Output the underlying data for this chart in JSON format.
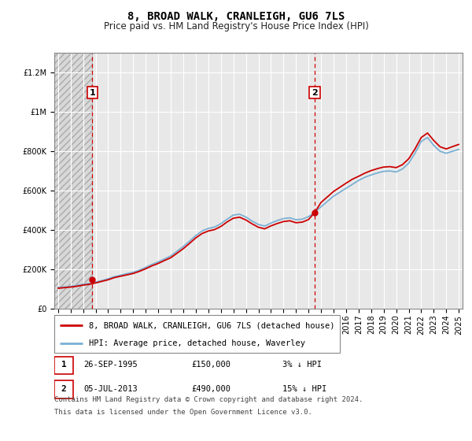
{
  "title": "8, BROAD WALK, CRANLEIGH, GU6 7LS",
  "subtitle": "Price paid vs. HM Land Registry's House Price Index (HPI)",
  "background_color": "#ffffff",
  "plot_bg_color": "#e8e8e8",
  "grid_color": "#ffffff",
  "red_line_color": "#cc0000",
  "blue_line_color": "#7ab0d4",
  "annotation_box_color": "#cc0000",
  "sale1_year": 1995.73,
  "sale1_price": 150000,
  "sale1_label": "1",
  "sale1_date": "26-SEP-1995",
  "sale1_price_str": "£150,000",
  "sale1_pct": "3% ↓ HPI",
  "sale2_year": 2013.5,
  "sale2_price": 490000,
  "sale2_label": "2",
  "sale2_date": "05-JUL-2013",
  "sale2_price_str": "£490,000",
  "sale2_pct": "15% ↓ HPI",
  "legend_line1": "8, BROAD WALK, CRANLEIGH, GU6 7LS (detached house)",
  "legend_line2": "HPI: Average price, detached house, Waverley",
  "footnote_line1": "Contains HM Land Registry data © Crown copyright and database right 2024.",
  "footnote_line2": "This data is licensed under the Open Government Licence v3.0.",
  "ylim": [
    0,
    1300000
  ],
  "yticks": [
    0,
    200000,
    400000,
    600000,
    800000,
    1000000,
    1200000
  ],
  "hpi_years": [
    1993.0,
    1993.5,
    1994.0,
    1994.5,
    1995.0,
    1995.5,
    1996.0,
    1996.5,
    1997.0,
    1997.5,
    1998.0,
    1998.5,
    1999.0,
    1999.5,
    2000.0,
    2000.5,
    2001.0,
    2001.5,
    2002.0,
    2002.5,
    2003.0,
    2003.5,
    2004.0,
    2004.5,
    2005.0,
    2005.5,
    2006.0,
    2006.5,
    2007.0,
    2007.5,
    2008.0,
    2008.5,
    2009.0,
    2009.5,
    2010.0,
    2010.5,
    2011.0,
    2011.5,
    2012.0,
    2012.5,
    2013.0,
    2013.5,
    2014.0,
    2014.5,
    2015.0,
    2015.5,
    2016.0,
    2016.5,
    2017.0,
    2017.5,
    2018.0,
    2018.5,
    2019.0,
    2019.5,
    2020.0,
    2020.5,
    2021.0,
    2021.5,
    2022.0,
    2022.5,
    2023.0,
    2023.5,
    2024.0,
    2024.5,
    2025.0
  ],
  "hpi_values": [
    108000,
    110000,
    113000,
    118000,
    124000,
    128000,
    135000,
    143000,
    152000,
    163000,
    170000,
    178000,
    185000,
    196000,
    210000,
    225000,
    238000,
    253000,
    268000,
    292000,
    316000,
    343000,
    372000,
    395000,
    408000,
    415000,
    432000,
    455000,
    476000,
    480000,
    466000,
    445000,
    428000,
    420000,
    435000,
    448000,
    458000,
    462000,
    452000,
    455000,
    468000,
    490000,
    518000,
    545000,
    572000,
    592000,
    612000,
    632000,
    652000,
    668000,
    680000,
    690000,
    698000,
    700000,
    695000,
    710000,
    740000,
    790000,
    850000,
    870000,
    830000,
    800000,
    790000,
    800000,
    810000
  ],
  "price_years": [
    1993.0,
    1993.5,
    1994.0,
    1994.5,
    1995.0,
    1995.5,
    1996.0,
    1996.5,
    1997.0,
    1997.5,
    1998.0,
    1998.5,
    1999.0,
    1999.5,
    2000.0,
    2000.5,
    2001.0,
    2001.5,
    2002.0,
    2002.5,
    2003.0,
    2003.5,
    2004.0,
    2004.5,
    2005.0,
    2005.5,
    2006.0,
    2006.5,
    2007.0,
    2007.5,
    2008.0,
    2008.5,
    2009.0,
    2009.5,
    2010.0,
    2010.5,
    2011.0,
    2011.5,
    2012.0,
    2012.5,
    2013.0,
    2013.5,
    2014.0,
    2014.5,
    2015.0,
    2015.5,
    2016.0,
    2016.5,
    2017.0,
    2017.5,
    2018.0,
    2018.5,
    2019.0,
    2019.5,
    2020.0,
    2020.5,
    2021.0,
    2021.5,
    2022.0,
    2022.5,
    2023.0,
    2023.5,
    2024.0,
    2024.5,
    2025.0
  ],
  "price_values": [
    104000,
    107000,
    110000,
    114000,
    120000,
    124000,
    131000,
    139000,
    147000,
    158000,
    165000,
    172000,
    179000,
    190000,
    203000,
    218000,
    230000,
    245000,
    259000,
    282000,
    305000,
    332000,
    360000,
    382000,
    395000,
    402000,
    418000,
    441000,
    460000,
    465000,
    451000,
    431000,
    414000,
    406000,
    421000,
    433000,
    443000,
    447000,
    437000,
    440000,
    453000,
    490000,
    540000,
    568000,
    596000,
    617000,
    638000,
    658000,
    673000,
    689000,
    702000,
    712000,
    720000,
    722000,
    717000,
    732000,
    762000,
    812000,
    870000,
    893000,
    855000,
    823000,
    812000,
    824000,
    835000
  ],
  "xmin": 1993,
  "xmax": 2025,
  "xtick_years": [
    1993,
    1994,
    1995,
    1996,
    1997,
    1998,
    1999,
    2000,
    2001,
    2002,
    2003,
    2004,
    2005,
    2006,
    2007,
    2008,
    2009,
    2010,
    2011,
    2012,
    2013,
    2014,
    2015,
    2016,
    2017,
    2018,
    2019,
    2020,
    2021,
    2022,
    2023,
    2024,
    2025
  ],
  "title_fontsize": 10,
  "subtitle_fontsize": 8.5,
  "axis_fontsize": 7,
  "legend_fontsize": 7.5,
  "footnote_fontsize": 6.5
}
